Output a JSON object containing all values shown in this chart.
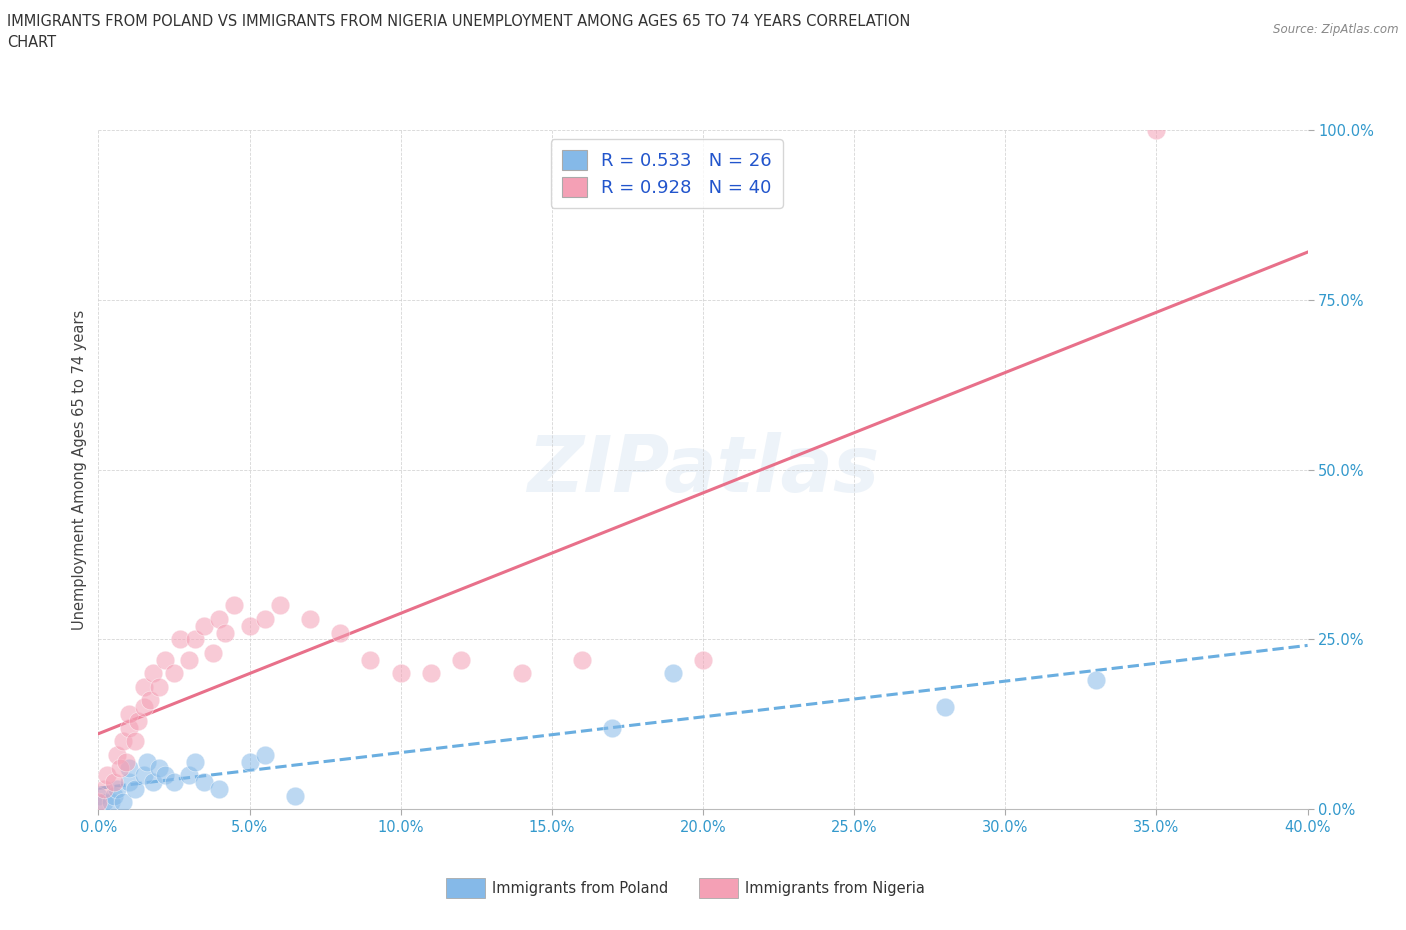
{
  "title_line1": "IMMIGRANTS FROM POLAND VS IMMIGRANTS FROM NIGERIA UNEMPLOYMENT AMONG AGES 65 TO 74 YEARS CORRELATION",
  "title_line2": "CHART",
  "source": "Source: ZipAtlas.com",
  "xlabel_poland": "Immigrants from Poland",
  "xlabel_nigeria": "Immigrants from Nigeria",
  "ylabel": "Unemployment Among Ages 65 to 74 years",
  "xlim": [
    0.0,
    0.4
  ],
  "ylim": [
    0.0,
    1.0
  ],
  "xticks": [
    0.0,
    0.05,
    0.1,
    0.15,
    0.2,
    0.25,
    0.3,
    0.35,
    0.4
  ],
  "yticks": [
    0.0,
    0.25,
    0.5,
    0.75,
    1.0
  ],
  "xtick_labels": [
    "0.0%",
    "5.0%",
    "10.0%",
    "15.0%",
    "20.0%",
    "25.0%",
    "30.0%",
    "35.0%",
    "40.0%"
  ],
  "ytick_labels": [
    "0.0%",
    "25.0%",
    "50.0%",
    "75.0%",
    "100.0%"
  ],
  "poland_color": "#85b9e8",
  "nigeria_color": "#f4a0b5",
  "poland_line_color": "#6aaee0",
  "nigeria_line_color": "#e8708a",
  "r_poland": 0.533,
  "n_poland": 26,
  "r_nigeria": 0.928,
  "n_nigeria": 40,
  "legend_text_color": "#2255cc",
  "watermark": "ZIPatlas",
  "background_color": "#ffffff",
  "poland_scatter_x": [
    0.0,
    0.002,
    0.004,
    0.005,
    0.006,
    0.008,
    0.01,
    0.01,
    0.012,
    0.015,
    0.016,
    0.018,
    0.02,
    0.022,
    0.025,
    0.03,
    0.032,
    0.035,
    0.04,
    0.05,
    0.055,
    0.065,
    0.17,
    0.19,
    0.28,
    0.33
  ],
  "poland_scatter_y": [
    0.02,
    0.01,
    0.01,
    0.02,
    0.03,
    0.01,
    0.04,
    0.06,
    0.03,
    0.05,
    0.07,
    0.04,
    0.06,
    0.05,
    0.04,
    0.05,
    0.07,
    0.04,
    0.03,
    0.07,
    0.08,
    0.02,
    0.12,
    0.2,
    0.15,
    0.19
  ],
  "nigeria_scatter_x": [
    0.0,
    0.002,
    0.003,
    0.005,
    0.006,
    0.007,
    0.008,
    0.009,
    0.01,
    0.01,
    0.012,
    0.013,
    0.015,
    0.015,
    0.017,
    0.018,
    0.02,
    0.022,
    0.025,
    0.027,
    0.03,
    0.032,
    0.035,
    0.038,
    0.04,
    0.042,
    0.045,
    0.05,
    0.055,
    0.06,
    0.07,
    0.08,
    0.09,
    0.1,
    0.11,
    0.12,
    0.14,
    0.16,
    0.2,
    0.35
  ],
  "nigeria_scatter_y": [
    0.01,
    0.03,
    0.05,
    0.04,
    0.08,
    0.06,
    0.1,
    0.07,
    0.12,
    0.14,
    0.1,
    0.13,
    0.15,
    0.18,
    0.16,
    0.2,
    0.18,
    0.22,
    0.2,
    0.25,
    0.22,
    0.25,
    0.27,
    0.23,
    0.28,
    0.26,
    0.3,
    0.27,
    0.28,
    0.3,
    0.28,
    0.26,
    0.22,
    0.2,
    0.2,
    0.22,
    0.2,
    0.22,
    0.22,
    1.0
  ]
}
